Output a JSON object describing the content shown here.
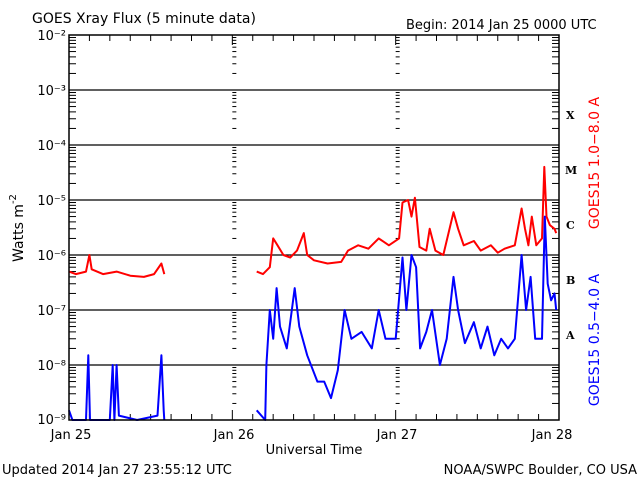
{
  "chart_data": {
    "type": "line",
    "title": "GOES Xray Flux (5 minute data)",
    "begin_label": "Begin:  2014 Jan 25 0000 UTC",
    "xlabel": "Universal Time",
    "ylabel": "Watts m",
    "ylabel_sup": "-2",
    "y_scale": "log",
    "ylim": [
      1e-09,
      0.01
    ],
    "xlim": [
      "2014-01-25T00:00",
      "2014-01-28T00:00"
    ],
    "x_tick_labels": [
      "Jan 25",
      "Jan 26",
      "Jan 27",
      "Jan 28"
    ],
    "y_tick_labels": [
      "10⁻²",
      "10⁻³",
      "10⁻⁴",
      "10⁻⁵",
      "10⁻⁶",
      "10⁻⁷",
      "10⁻⁸",
      "10⁻⁹"
    ],
    "grid": "horizontal at decades",
    "flare_classes": [
      "X",
      "M",
      "C",
      "B",
      "A"
    ],
    "footer_left": "Updated 2014 Jan 27 23:55:12 UTC",
    "footer_right": "NOAA/SWPC Boulder, CO USA",
    "series": [
      {
        "name": "GOES15 1.0−8.0 A",
        "color": "#ff0000",
        "segments": [
          [
            [
              "2014-01-25T00:00",
              5e-07
            ],
            [
              "2014-01-25T01:00",
              4.5e-07
            ],
            [
              "2014-01-25T02:30",
              5e-07
            ],
            [
              "2014-01-25T03:00",
              1e-06
            ],
            [
              "2014-01-25T03:20",
              5.5e-07
            ],
            [
              "2014-01-25T05:00",
              4.5e-07
            ],
            [
              "2014-01-25T07:00",
              5e-07
            ],
            [
              "2014-01-25T09:00",
              4.2e-07
            ],
            [
              "2014-01-25T11:00",
              4e-07
            ],
            [
              "2014-01-25T12:30",
              4.5e-07
            ],
            [
              "2014-01-25T13:35",
              7e-07
            ],
            [
              "2014-01-25T14:00",
              4.5e-07
            ]
          ],
          [
            [
              "2014-01-26T03:35",
              5e-07
            ],
            [
              "2014-01-26T04:30",
              4.5e-07
            ],
            [
              "2014-01-26T05:30",
              6e-07
            ],
            [
              "2014-01-26T06:00",
              2e-06
            ],
            [
              "2014-01-26T06:30",
              1.6e-06
            ],
            [
              "2014-01-26T07:30",
              1e-06
            ],
            [
              "2014-01-26T08:30",
              9e-07
            ],
            [
              "2014-01-26T09:30",
              1.2e-06
            ],
            [
              "2014-01-26T10:30",
              2.5e-06
            ],
            [
              "2014-01-26T11:00",
              1e-06
            ],
            [
              "2014-01-26T12:00",
              8e-07
            ],
            [
              "2014-01-26T14:00",
              7e-07
            ],
            [
              "2014-01-26T16:00",
              7.5e-07
            ],
            [
              "2014-01-26T17:00",
              1.2e-06
            ],
            [
              "2014-01-26T18:30",
              1.5e-06
            ],
            [
              "2014-01-26T20:00",
              1.3e-06
            ],
            [
              "2014-01-26T21:30",
              2e-06
            ],
            [
              "2014-01-26T23:00",
              1.5e-06
            ],
            [
              "2014-01-27T00:30",
              2e-06
            ],
            [
              "2014-01-27T01:00",
              9e-06
            ],
            [
              "2014-01-27T01:50",
              1e-05
            ],
            [
              "2014-01-27T02:20",
              5e-06
            ],
            [
              "2014-01-27T02:50",
              1.1e-05
            ],
            [
              "2014-01-27T03:30",
              1.4e-06
            ],
            [
              "2014-01-27T04:30",
              1.2e-06
            ],
            [
              "2014-01-27T05:00",
              3e-06
            ],
            [
              "2014-01-27T05:50",
              1.2e-06
            ],
            [
              "2014-01-27T07:00",
              1e-06
            ],
            [
              "2014-01-27T08:30",
              6e-06
            ],
            [
              "2014-01-27T09:10",
              3e-06
            ],
            [
              "2014-01-27T10:00",
              1.5e-06
            ],
            [
              "2014-01-27T11:30",
              1.8e-06
            ],
            [
              "2014-01-27T12:30",
              1.2e-06
            ],
            [
              "2014-01-27T14:00",
              1.5e-06
            ],
            [
              "2014-01-27T15:00",
              1.1e-06
            ],
            [
              "2014-01-27T16:00",
              1.3e-06
            ],
            [
              "2014-01-27T17:30",
              1.5e-06
            ],
            [
              "2014-01-27T18:30",
              7e-06
            ],
            [
              "2014-01-27T19:00",
              3e-06
            ],
            [
              "2014-01-27T19:30",
              1.5e-06
            ],
            [
              "2014-01-27T20:00",
              5e-06
            ],
            [
              "2014-01-27T20:40",
              1.5e-06
            ],
            [
              "2014-01-27T21:30",
              2e-06
            ],
            [
              "2014-01-27T21:50",
              4e-05
            ],
            [
              "2014-01-27T22:10",
              5e-06
            ],
            [
              "2014-01-27T22:40",
              3.5e-06
            ],
            [
              "2014-01-27T23:20",
              3e-06
            ],
            [
              "2014-01-27T23:35",
              2.5e-06
            ]
          ]
        ]
      },
      {
        "name": "GOES15 0.5−4.0 A",
        "color": "#0000ff",
        "segments": [
          [
            [
              "2014-01-25T00:00",
              1.5e-09
            ],
            [
              "2014-01-25T00:30",
              1e-09
            ],
            [
              "2014-01-25T02:30",
              1e-09
            ],
            [
              "2014-01-25T02:50",
              1.5e-08
            ],
            [
              "2014-01-25T03:05",
              1e-09
            ],
            [
              "2014-01-25T06:00",
              1e-09
            ],
            [
              "2014-01-25T06:25",
              1e-08
            ],
            [
              "2014-01-25T06:40",
              1e-09
            ],
            [
              "2014-01-25T07:00",
              1e-08
            ],
            [
              "2014-01-25T07:20",
              1.2e-09
            ],
            [
              "2014-01-25T10:00",
              1e-09
            ],
            [
              "2014-01-25T13:00",
              1.2e-09
            ],
            [
              "2014-01-25T13:35",
              1.5e-08
            ],
            [
              "2014-01-25T13:55",
              1.5e-09
            ],
            [
              "2014-01-25T14:00",
              1e-09
            ]
          ],
          [
            [
              "2014-01-26T03:35",
              1.5e-09
            ],
            [
              "2014-01-26T04:50",
              1e-09
            ],
            [
              "2014-01-26T05:00",
              1e-08
            ],
            [
              "2014-01-26T05:30",
              1e-07
            ],
            [
              "2014-01-26T06:00",
              3e-08
            ],
            [
              "2014-01-26T06:30",
              2.5e-07
            ],
            [
              "2014-01-26T07:00",
              5e-08
            ],
            [
              "2014-01-26T08:00",
              2e-08
            ],
            [
              "2014-01-26T09:10",
              2.5e-07
            ],
            [
              "2014-01-26T09:50",
              5e-08
            ],
            [
              "2014-01-26T11:00",
              1.5e-08
            ],
            [
              "2014-01-26T12:30",
              5e-09
            ],
            [
              "2014-01-26T13:30",
              5e-09
            ],
            [
              "2014-01-26T14:30",
              2.5e-09
            ],
            [
              "2014-01-26T15:30",
              8e-09
            ],
            [
              "2014-01-26T16:30",
              1e-07
            ],
            [
              "2014-01-26T17:30",
              3e-08
            ],
            [
              "2014-01-26T19:00",
              4e-08
            ],
            [
              "2014-01-26T20:30",
              2e-08
            ],
            [
              "2014-01-26T21:30",
              1e-07
            ],
            [
              "2014-01-26T22:30",
              3e-08
            ],
            [
              "2014-01-27T00:00",
              3e-08
            ],
            [
              "2014-01-27T01:00",
              9e-07
            ],
            [
              "2014-01-27T01:35",
              1e-07
            ],
            [
              "2014-01-27T02:20",
              1e-06
            ],
            [
              "2014-01-27T03:00",
              6e-07
            ],
            [
              "2014-01-27T03:35",
              2e-08
            ],
            [
              "2014-01-27T04:30",
              4e-08
            ],
            [
              "2014-01-27T05:20",
              1e-07
            ],
            [
              "2014-01-27T06:30",
              1e-08
            ],
            [
              "2014-01-27T07:30",
              3e-08
            ],
            [
              "2014-01-27T08:30",
              4e-07
            ],
            [
              "2014-01-27T09:10",
              1e-07
            ],
            [
              "2014-01-27T10:10",
              2.5e-08
            ],
            [
              "2014-01-27T11:30",
              6e-08
            ],
            [
              "2014-01-27T12:30",
              2e-08
            ],
            [
              "2014-01-27T13:30",
              5e-08
            ],
            [
              "2014-01-27T14:30",
              1.5e-08
            ],
            [
              "2014-01-27T15:30",
              3e-08
            ],
            [
              "2014-01-27T16:30",
              2e-08
            ],
            [
              "2014-01-27T17:30",
              3e-08
            ],
            [
              "2014-01-27T18:30",
              1e-06
            ],
            [
              "2014-01-27T19:10",
              1e-07
            ],
            [
              "2014-01-27T19:50",
              4e-07
            ],
            [
              "2014-01-27T20:30",
              3e-08
            ],
            [
              "2014-01-27T21:30",
              3e-08
            ],
            [
              "2014-01-27T21:55",
              5e-06
            ],
            [
              "2014-01-27T22:20",
              3e-07
            ],
            [
              "2014-01-27T22:50",
              1.5e-07
            ],
            [
              "2014-01-27T23:20",
              2e-07
            ],
            [
              "2014-01-27T23:35",
              1e-07
            ]
          ]
        ]
      }
    ]
  }
}
